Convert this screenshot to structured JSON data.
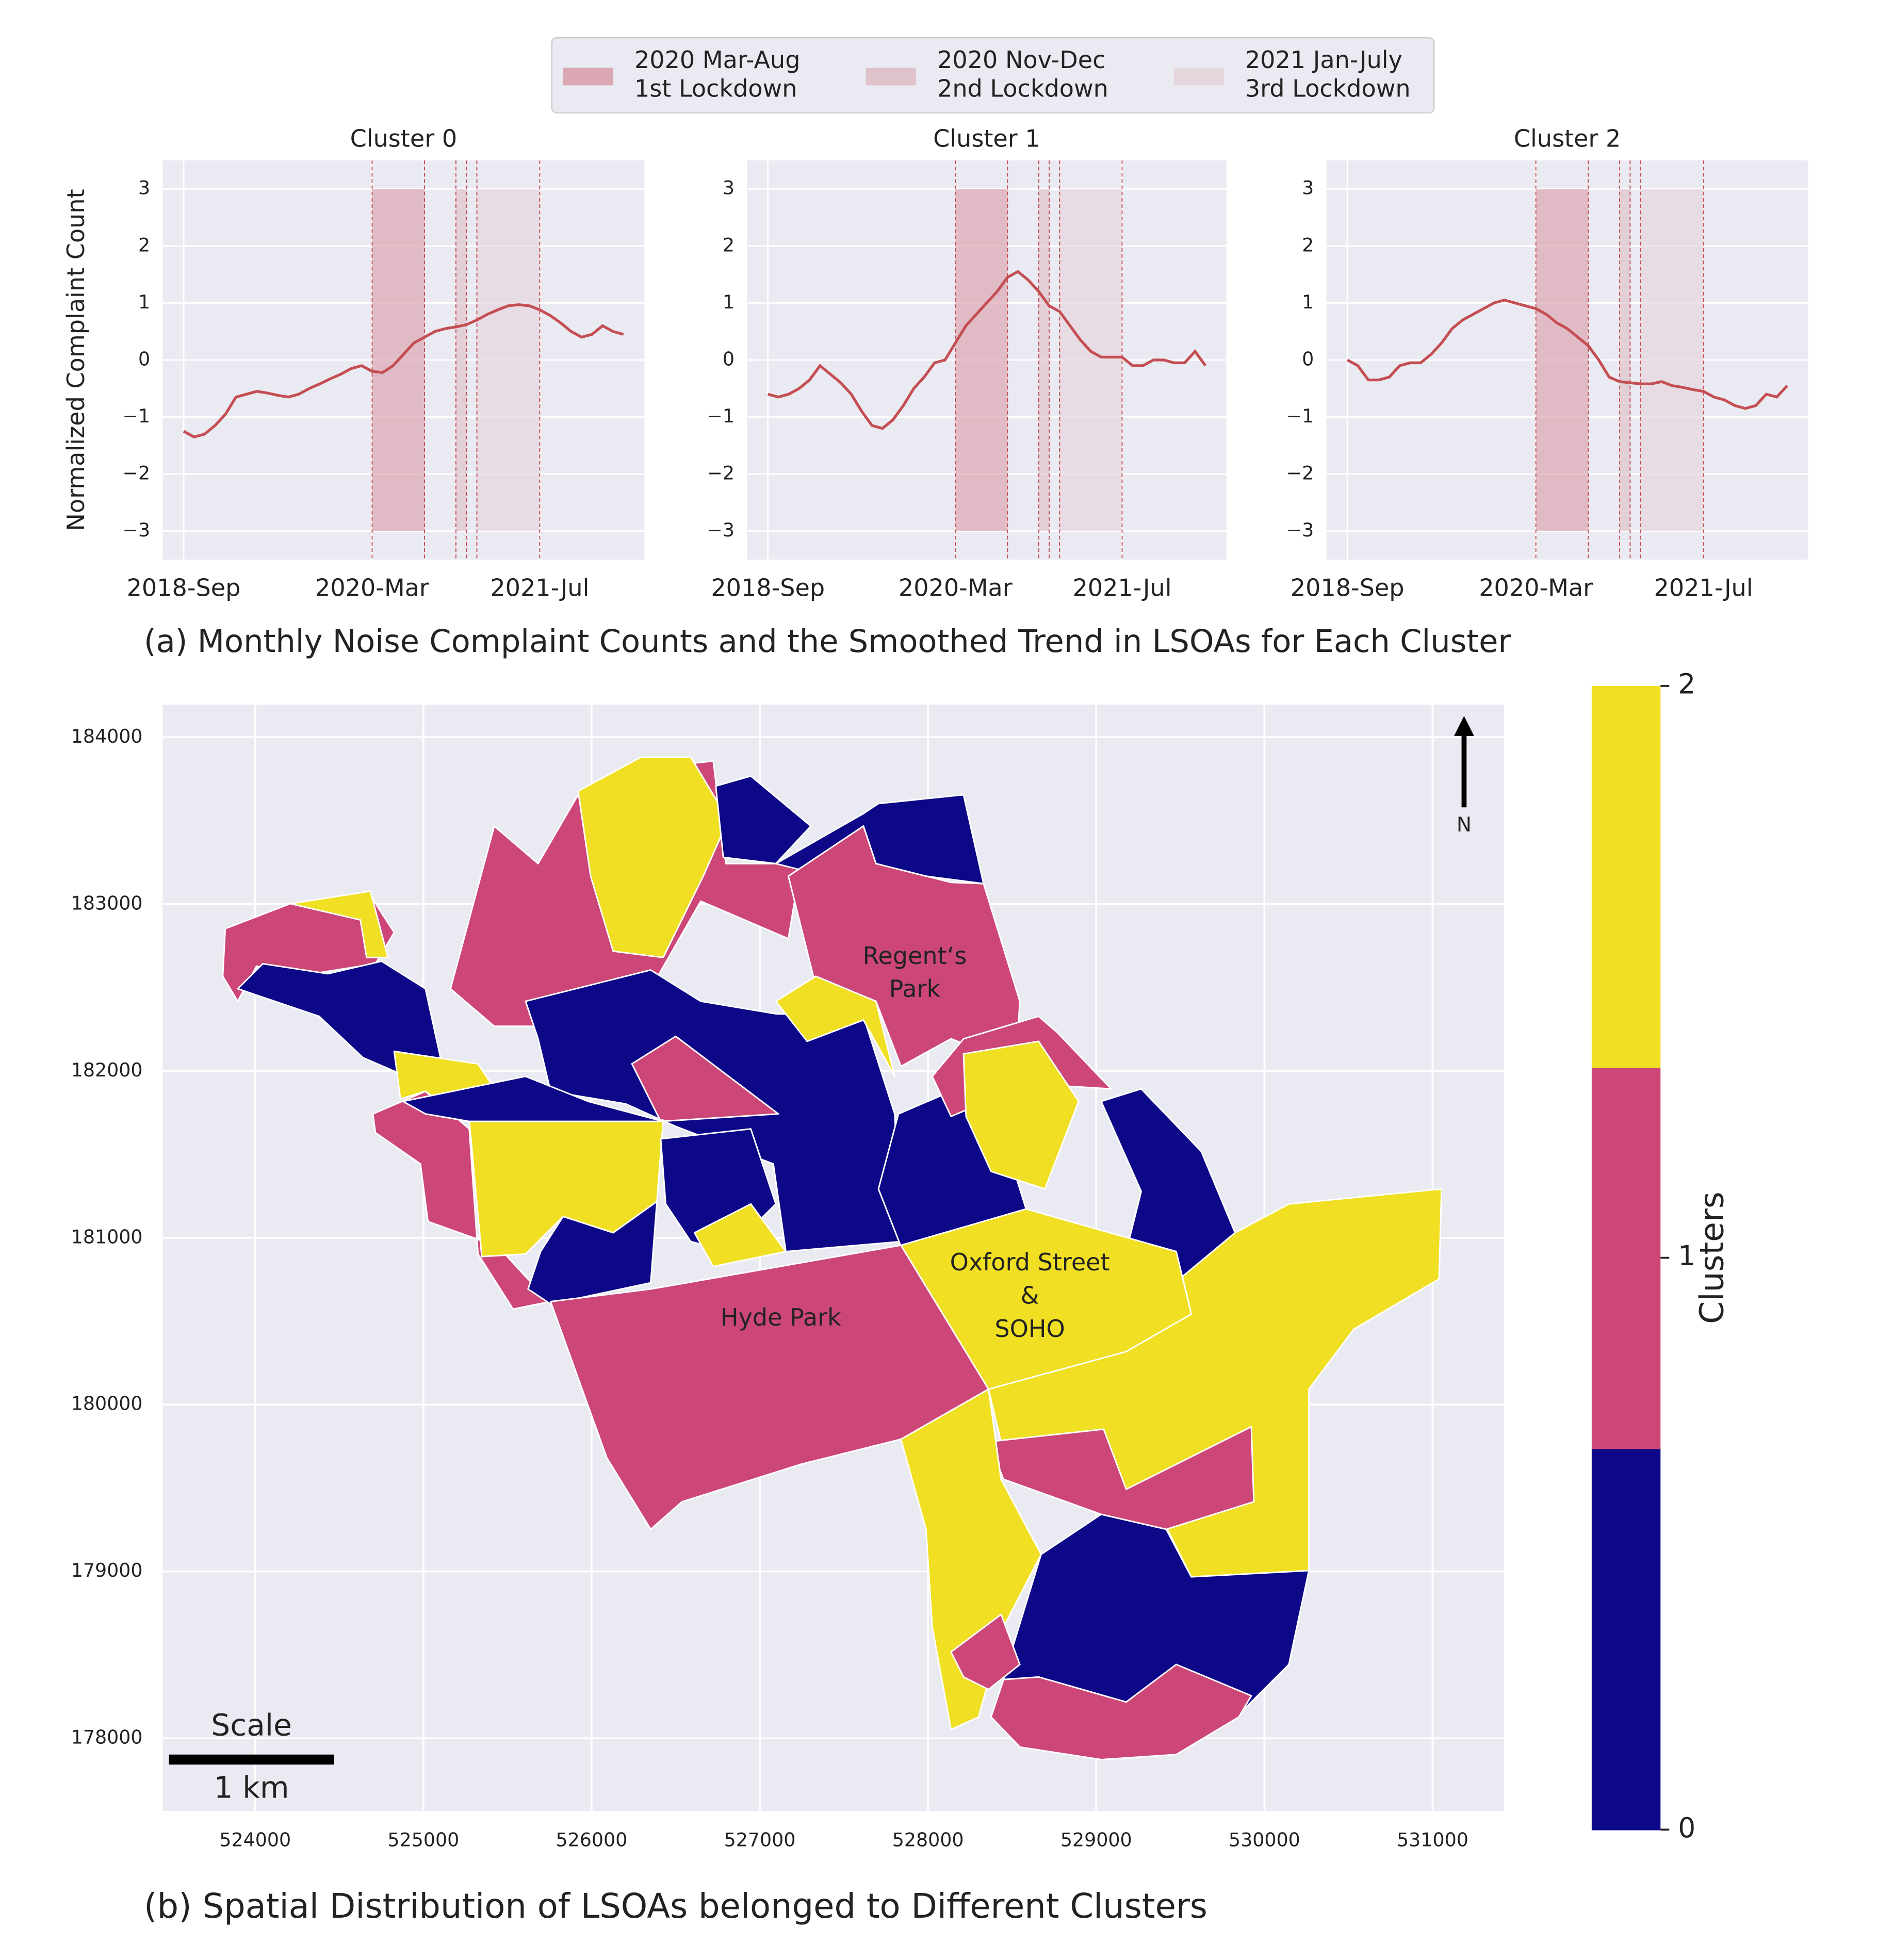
{
  "figure": {
    "caption_a": "(a) Monthly Noise Complaint Counts and the Smoothed Trend in LSOAs for Each Cluster",
    "caption_b": "(b) Spatial Distribution of LSOAs belonged to Different Clusters"
  },
  "lockdowns": [
    {
      "lines": [
        "2020 Mar-Aug",
        "1st Lockdown"
      ],
      "start": "2020-03",
      "end": "2020-08",
      "color": "#dba7b2"
    },
    {
      "lines": [
        "2020 Nov-Dec",
        "2nd Lockdown"
      ],
      "start": "2020-11",
      "end": "2020-12",
      "color": "#dfc3ca"
    },
    {
      "lines": [
        "2021 Jan-July",
        "3rd Lockdown"
      ],
      "start": "2021-01",
      "end": "2021-07",
      "color": "#e5d6dd"
    }
  ],
  "chart_data": [
    {
      "type": "line",
      "title": "Cluster 0",
      "ylabel": "Normalized Complaint Count",
      "color": "#c44e52",
      "x": [
        "2018-09",
        "2018-10",
        "2018-11",
        "2018-12",
        "2019-01",
        "2019-02",
        "2019-03",
        "2019-04",
        "2019-05",
        "2019-06",
        "2019-07",
        "2019-08",
        "2019-09",
        "2019-10",
        "2019-11",
        "2019-12",
        "2020-01",
        "2020-02",
        "2020-03",
        "2020-04",
        "2020-05",
        "2020-06",
        "2020-07",
        "2020-08",
        "2020-09",
        "2020-10",
        "2020-11",
        "2020-12",
        "2021-01",
        "2021-02",
        "2021-03",
        "2021-04",
        "2021-05",
        "2021-06",
        "2021-07",
        "2021-08",
        "2021-09",
        "2021-10",
        "2021-11",
        "2021-12",
        "2022-01",
        "2022-02",
        "2022-03"
      ],
      "values": [
        -1.25,
        -1.35,
        -1.3,
        -1.15,
        -0.95,
        -0.65,
        -0.6,
        -0.55,
        -0.58,
        -0.62,
        -0.65,
        -0.6,
        -0.5,
        -0.42,
        -0.33,
        -0.25,
        -0.15,
        -0.1,
        -0.2,
        -0.22,
        -0.1,
        0.1,
        0.3,
        0.4,
        0.5,
        0.55,
        0.58,
        0.62,
        0.7,
        0.8,
        0.88,
        0.95,
        0.97,
        0.95,
        0.88,
        0.78,
        0.65,
        0.5,
        0.4,
        0.45,
        0.6,
        0.5,
        0.45
      ],
      "xlim": [
        "2018-07",
        "2022-05"
      ],
      "ylim": [
        -3.5,
        3.5
      ],
      "xticks": [
        {
          "value": "2018-09",
          "label": "2018-Sep"
        },
        {
          "value": "2020-03",
          "label": "2020-Mar"
        },
        {
          "value": "2021-07",
          "label": "2021-Jul"
        }
      ],
      "yticks": [
        {
          "value": -3,
          "label": "−3"
        },
        {
          "value": -2,
          "label": "−2"
        },
        {
          "value": -1,
          "label": "−1"
        },
        0,
        1,
        2,
        3
      ],
      "grid": true
    },
    {
      "type": "line",
      "title": "Cluster 1",
      "color": "#c44e52",
      "x": [
        "2018-09",
        "2018-10",
        "2018-11",
        "2018-12",
        "2019-01",
        "2019-02",
        "2019-03",
        "2019-04",
        "2019-05",
        "2019-06",
        "2019-07",
        "2019-08",
        "2019-09",
        "2019-10",
        "2019-11",
        "2019-12",
        "2020-01",
        "2020-02",
        "2020-03",
        "2020-04",
        "2020-05",
        "2020-06",
        "2020-07",
        "2020-08",
        "2020-09",
        "2020-10",
        "2020-11",
        "2020-12",
        "2021-01",
        "2021-02",
        "2021-03",
        "2021-04",
        "2021-05",
        "2021-06",
        "2021-07",
        "2021-08",
        "2021-09",
        "2021-10",
        "2021-11",
        "2021-12",
        "2022-01",
        "2022-02",
        "2022-03"
      ],
      "values": [
        -0.6,
        -0.65,
        -0.6,
        -0.5,
        -0.35,
        -0.1,
        -0.25,
        -0.4,
        -0.6,
        -0.9,
        -1.15,
        -1.2,
        -1.05,
        -0.8,
        -0.5,
        -0.3,
        -0.05,
        0,
        0.3,
        0.6,
        0.8,
        1.0,
        1.2,
        1.45,
        1.55,
        1.4,
        1.2,
        0.95,
        0.85,
        0.6,
        0.35,
        0.15,
        0.05,
        0.05,
        0.05,
        -0.1,
        -0.1,
        0,
        0,
        -0.05,
        -0.05,
        0.15,
        -0.1
      ],
      "xlim": [
        "2018-07",
        "2022-05"
      ],
      "ylim": [
        -3.5,
        3.5
      ],
      "xticks": [
        {
          "value": "2018-09",
          "label": "2018-Sep"
        },
        {
          "value": "2020-03",
          "label": "2020-Mar"
        },
        {
          "value": "2021-07",
          "label": "2021-Jul"
        }
      ],
      "yticks": [
        {
          "value": -3,
          "label": "−3"
        },
        {
          "value": -2,
          "label": "−2"
        },
        {
          "value": -1,
          "label": "−1"
        },
        0,
        1,
        2,
        3
      ],
      "grid": true
    },
    {
      "type": "line",
      "title": "Cluster 2",
      "color": "#c44e52",
      "x": [
        "2018-09",
        "2018-10",
        "2018-11",
        "2018-12",
        "2019-01",
        "2019-02",
        "2019-03",
        "2019-04",
        "2019-05",
        "2019-06",
        "2019-07",
        "2019-08",
        "2019-09",
        "2019-10",
        "2019-11",
        "2019-12",
        "2020-01",
        "2020-02",
        "2020-03",
        "2020-04",
        "2020-05",
        "2020-06",
        "2020-07",
        "2020-08",
        "2020-09",
        "2020-10",
        "2020-11",
        "2020-12",
        "2021-01",
        "2021-02",
        "2021-03",
        "2021-04",
        "2021-05",
        "2021-06",
        "2021-07",
        "2021-08",
        "2021-09",
        "2021-10",
        "2021-11",
        "2021-12",
        "2022-01",
        "2022-02",
        "2022-03"
      ],
      "values": [
        0,
        -0.1,
        -0.35,
        -0.35,
        -0.3,
        -0.1,
        -0.05,
        -0.05,
        0.1,
        0.3,
        0.55,
        0.7,
        0.8,
        0.9,
        1.0,
        1.05,
        1.0,
        0.95,
        0.9,
        0.8,
        0.65,
        0.55,
        0.4,
        0.25,
        0.0,
        -0.3,
        -0.38,
        -0.4,
        -0.42,
        -0.42,
        -0.38,
        -0.45,
        -0.48,
        -0.52,
        -0.55,
        -0.65,
        -0.7,
        -0.8,
        -0.85,
        -0.8,
        -0.6,
        -0.65,
        -0.45
      ],
      "xlim": [
        "2018-07",
        "2022-05"
      ],
      "ylim": [
        -3.5,
        3.5
      ],
      "xticks": [
        {
          "value": "2018-09",
          "label": "2018-Sep"
        },
        {
          "value": "2020-03",
          "label": "2020-Mar"
        },
        {
          "value": "2021-07",
          "label": "2021-Jul"
        }
      ],
      "yticks": [
        {
          "value": -3,
          "label": "−3"
        },
        {
          "value": -2,
          "label": "−2"
        },
        {
          "value": -1,
          "label": "−1"
        },
        0,
        1,
        2,
        3
      ],
      "grid": true
    },
    {
      "type": "choropleth",
      "xlim": [
        523450,
        531425
      ],
      "ylim": [
        177565,
        184195
      ],
      "xticks": [
        524000,
        525000,
        526000,
        527000,
        528000,
        529000,
        530000,
        531000
      ],
      "yticks": [
        178000,
        179000,
        180000,
        181000,
        182000,
        183000,
        184000
      ],
      "grid": true,
      "regions": [
        1,
        0,
        2,
        1,
        2,
        0,
        0,
        1,
        0,
        2,
        1,
        1,
        2,
        0,
        2,
        0,
        0,
        2,
        0,
        1,
        2,
        0,
        1,
        2,
        2,
        1,
        2,
        0,
        1,
        1
      ],
      "colorbar": {
        "label": "Clusters",
        "lim": [
          0,
          2
        ],
        "ticks": [
          0,
          1,
          2
        ],
        "colors": [
          "#0d0887",
          "#cc4778",
          "#f0df22"
        ]
      },
      "annotations": [
        {
          "lines": [
            "Regent‘s",
            "Park"
          ]
        },
        {
          "lines": [
            "Oxford Street",
            "&",
            "SOHO"
          ]
        },
        {
          "lines": [
            "Hyde Park"
          ]
        }
      ],
      "north": "N",
      "scale": {
        "title": "Scale",
        "label": "1 km"
      }
    }
  ]
}
